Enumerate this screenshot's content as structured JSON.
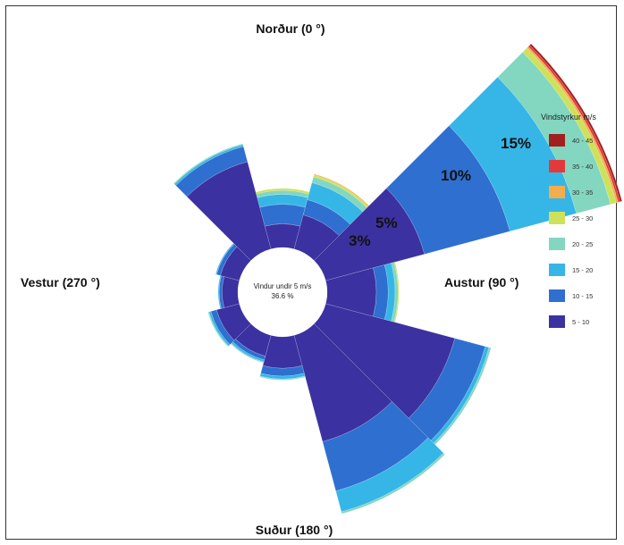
{
  "chart_data": {
    "type": "wind-rose",
    "direction_labels": {
      "north": "Norður (0 °)",
      "east": "Austur (90 °)",
      "south": "Suður (180 °)",
      "west": "Vestur (270 °)"
    },
    "ring_labels": [
      "3%",
      "5%",
      "10%",
      "15%"
    ],
    "calm": {
      "line1": "Vindur undir 5 m/s",
      "line2": "36.6 %",
      "percent": 36.6
    },
    "legend": {
      "title": "Vindstyrkur m/s",
      "position": "right",
      "bins": [
        {
          "label": "40 - 45",
          "color": "#a21f1f"
        },
        {
          "label": "35 - 40",
          "color": "#e23a3a"
        },
        {
          "label": "30 - 35",
          "color": "#f3ad4c"
        },
        {
          "label": "25 - 30",
          "color": "#cde25a"
        },
        {
          "label": "20 - 25",
          "color": "#83d6bf"
        },
        {
          "label": "15 - 20",
          "color": "#36b6e6"
        },
        {
          "label": "10 - 15",
          "color": "#2f6fcf"
        },
        {
          "label": "5 - 10",
          "color": "#3c31a0"
        }
      ]
    },
    "sector_width_deg": 30,
    "directions_deg": [
      0,
      30,
      60,
      90,
      120,
      150,
      180,
      210,
      240,
      270,
      300,
      330
    ],
    "series": [
      {
        "name": "5 - 10",
        "values": [
          1.2,
          1.8,
          5.2,
          2.5,
          6.8,
          5.6,
          1.6,
          1.1,
          1.2,
          0.8,
          1.0,
          4.6
        ]
      },
      {
        "name": "10 - 15",
        "values": [
          1.0,
          0.8,
          4.5,
          0.6,
          1.6,
          2.6,
          0.4,
          0.2,
          0.3,
          0.15,
          0.2,
          0.8
        ]
      },
      {
        "name": "15 - 20",
        "values": [
          0.5,
          0.9,
          3.5,
          0.35,
          0.2,
          1.1,
          0.15,
          0.1,
          0.1,
          0.05,
          0.05,
          0.1
        ]
      },
      {
        "name": "20 - 25",
        "values": [
          0.2,
          0.3,
          1.8,
          0.15,
          0.1,
          0.1,
          0.05,
          0.05,
          0.05,
          0.0,
          0.0,
          0.05
        ]
      },
      {
        "name": "25 - 30",
        "values": [
          0.1,
          0.1,
          0.3,
          0.05,
          0.0,
          0.0,
          0.0,
          0.0,
          0.0,
          0.0,
          0.0,
          0.0
        ]
      },
      {
        "name": "30 - 35",
        "values": [
          0.0,
          0.05,
          0.1,
          0.0,
          0.0,
          0.0,
          0.0,
          0.0,
          0.0,
          0.0,
          0.0,
          0.0
        ]
      },
      {
        "name": "35 - 40",
        "values": [
          0.0,
          0.0,
          0.1,
          0.0,
          0.0,
          0.0,
          0.0,
          0.0,
          0.0,
          0.0,
          0.0,
          0.0
        ]
      },
      {
        "name": "40 - 45",
        "values": [
          0.0,
          0.0,
          0.1,
          0.0,
          0.0,
          0.0,
          0.0,
          0.0,
          0.0,
          0.0,
          0.0,
          0.0
        ]
      }
    ]
  }
}
